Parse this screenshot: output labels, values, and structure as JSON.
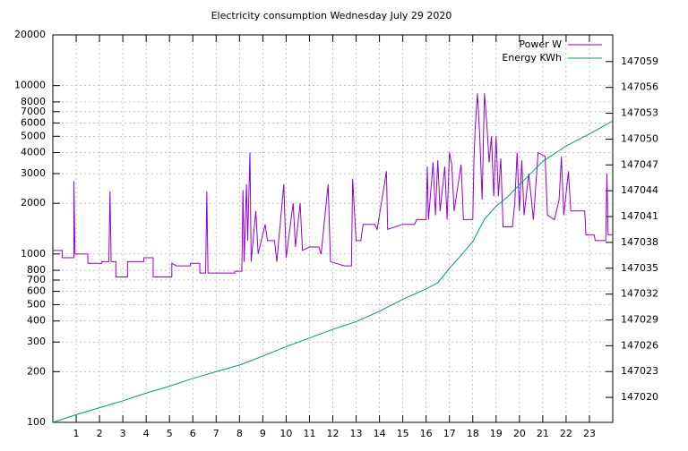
{
  "chart_data": {
    "type": "line",
    "title": "Electricity consumption Wednesday July 29 2020",
    "xlim": [
      0,
      24
    ],
    "xticks": [
      1,
      2,
      3,
      4,
      5,
      6,
      7,
      8,
      9,
      10,
      11,
      12,
      13,
      14,
      15,
      16,
      17,
      18,
      19,
      20,
      21,
      22,
      23
    ],
    "ylim": [
      100,
      20000
    ],
    "log_y": true,
    "yticks": [
      100,
      200,
      300,
      400,
      500,
      600,
      700,
      800,
      1000,
      2000,
      3000,
      4000,
      5000,
      6000,
      7000,
      8000,
      10000,
      20000
    ],
    "y2lim": [
      147017.1,
      147062.1
    ],
    "y2ticks": [
      147020,
      147023,
      147026,
      147029,
      147032,
      147035,
      147038,
      147041,
      147044,
      147047,
      147050,
      147053,
      147056,
      147059
    ],
    "grid": true,
    "legend": "top-right",
    "series": [
      {
        "name": "Power W",
        "color": "#9400d3",
        "x": [
          0,
          0.4,
          0.4,
          0.9,
          0.9,
          0.95,
          1.5,
          1.5,
          2.1,
          2.1,
          2.4,
          2.45,
          2.5,
          2.7,
          2.7,
          3.2,
          3.2,
          3.9,
          3.9,
          4.3,
          4.3,
          5.1,
          5.1,
          5.3,
          5.9,
          5.9,
          6.3,
          6.3,
          6.55,
          6.6,
          6.65,
          7.8,
          7.8,
          8.1,
          8.15,
          8.2,
          8.3,
          8.35,
          8.45,
          8.5,
          8.7,
          8.8,
          9.1,
          9.2,
          9.5,
          9.6,
          9.9,
          10.0,
          10.3,
          10.4,
          10.6,
          10.7,
          11.0,
          11.4,
          11.5,
          11.8,
          11.9,
          12.5,
          12.8,
          12.85,
          12.9,
          13.0,
          13.2,
          13.3,
          13.8,
          13.9,
          14.3,
          14.35,
          15.0,
          15.5,
          15.6,
          16.0,
          16.05,
          16.1,
          16.3,
          16.4,
          16.5,
          16.6,
          16.8,
          16.9,
          17.0,
          17.1,
          17.2,
          17.5,
          17.6,
          18.0,
          18.05,
          18.1,
          18.2,
          18.3,
          18.4,
          18.5,
          18.6,
          18.7,
          18.8,
          18.9,
          19.0,
          19.1,
          19.2,
          19.3,
          19.7,
          19.8,
          19.9,
          20.0,
          20.1,
          20.2,
          20.4,
          20.6,
          20.8,
          21.1,
          21.2,
          21.5,
          21.7,
          21.8,
          21.9,
          22.1,
          22.2,
          22.8,
          22.85,
          23.2,
          23.25,
          23.7,
          23.75,
          23.8,
          24
        ],
        "values": [
          1050,
          1050,
          950,
          950,
          2700,
          1000,
          1000,
          880,
          880,
          900,
          900,
          2350,
          900,
          900,
          730,
          730,
          900,
          900,
          950,
          950,
          730,
          730,
          880,
          850,
          850,
          880,
          880,
          770,
          770,
          2350,
          770,
          770,
          790,
          790,
          2400,
          900,
          2600,
          1200,
          4000,
          900,
          1800,
          1000,
          1500,
          1200,
          1200,
          900,
          2600,
          950,
          2000,
          1100,
          2000,
          1050,
          1100,
          1100,
          1000,
          2600,
          900,
          850,
          850,
          2800,
          2100,
          1200,
          1200,
          1500,
          1500,
          1400,
          3100,
          1400,
          1500,
          1500,
          1600,
          1600,
          3300,
          1600,
          3500,
          1700,
          3600,
          1800,
          3300,
          1600,
          4000,
          3400,
          1800,
          3400,
          1600,
          1600,
          3600,
          5500,
          9000,
          5000,
          2100,
          9000,
          6000,
          3500,
          5000,
          2200,
          5000,
          2200,
          3700,
          1450,
          1450,
          2000,
          4000,
          1800,
          3600,
          1700,
          3000,
          1600,
          4000,
          3800,
          1700,
          1600,
          2100,
          3800,
          1700,
          3100,
          1800,
          1800,
          1300,
          1300,
          1200,
          1200,
          3000,
          1300,
          1300
        ]
      },
      {
        "name": "Energy KWh",
        "color": "#009e73",
        "axis": "y2",
        "x": [
          0,
          1,
          2,
          3,
          4,
          5,
          6,
          7,
          8,
          9,
          10,
          11,
          12,
          13,
          14,
          15,
          16,
          16.5,
          17,
          17.5,
          18,
          18.5,
          19,
          19.5,
          20,
          21,
          22,
          23,
          24
        ],
        "values": [
          147017.1,
          147018.0,
          147018.8,
          147019.6,
          147020.5,
          147021.3,
          147022.2,
          147023.0,
          147023.75,
          147024.8,
          147025.9,
          147026.9,
          147027.9,
          147028.8,
          147030.0,
          147031.4,
          147032.6,
          147033.3,
          147035.0,
          147036.5,
          147038.1,
          147040.7,
          147042.2,
          147043.3,
          147044.7,
          147047.4,
          147049.2,
          147050.6,
          147052.1
        ]
      }
    ]
  }
}
